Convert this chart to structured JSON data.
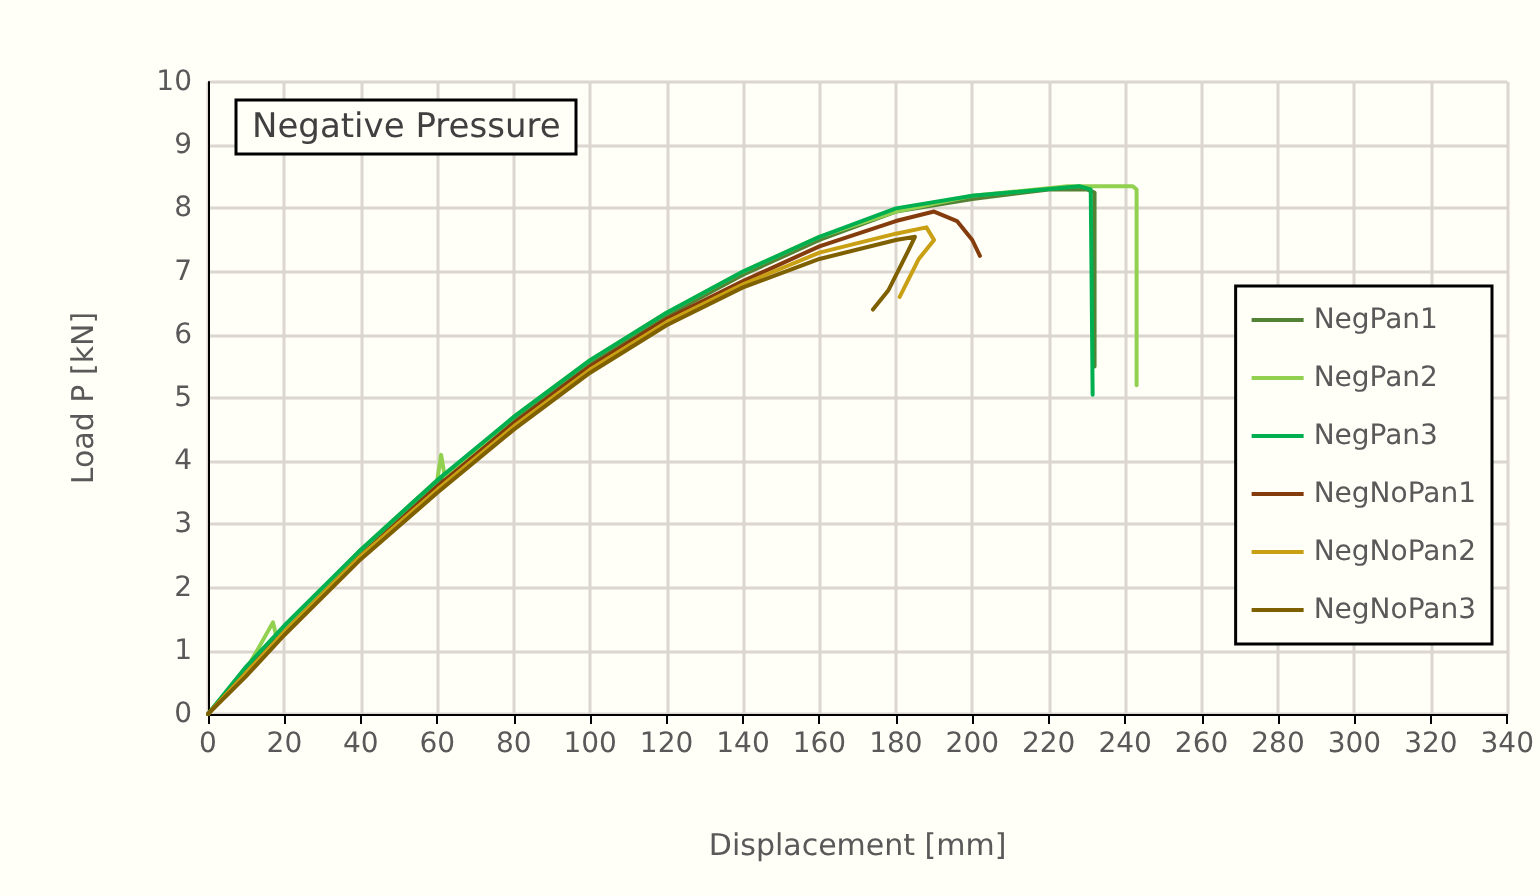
{
  "chart_data": {
    "type": "line",
    "title": "Negative Pressure",
    "xlabel": "Displacement [mm]",
    "ylabel": "Load P [kN]",
    "xlim": [
      0,
      340
    ],
    "xticks": [
      0,
      20,
      40,
      60,
      80,
      100,
      120,
      140,
      160,
      180,
      200,
      220,
      240,
      260,
      280,
      300,
      320,
      340
    ],
    "ylim": [
      0,
      10
    ],
    "yticks": [
      0,
      1,
      2,
      3,
      4,
      5,
      6,
      7,
      8,
      9,
      10
    ],
    "grid": true,
    "legend": "right",
    "marker": "none",
    "line_style": "solid",
    "series": [
      {
        "name": "NegPan1",
        "color": "#548235",
        "x": [
          0,
          10,
          20,
          40,
          60,
          80,
          100,
          120,
          140,
          160,
          180,
          200,
          220,
          230,
          232,
          232
        ],
        "values": [
          0,
          0.7,
          1.35,
          2.55,
          3.65,
          4.65,
          5.55,
          6.3,
          6.95,
          7.5,
          7.95,
          8.15,
          8.3,
          8.3,
          8.25,
          5.5
        ]
      },
      {
        "name": "NegPan2",
        "color": "#92d050",
        "x": [
          0,
          10,
          17,
          18,
          20,
          40,
          60,
          61,
          62,
          80,
          100,
          120,
          140,
          160,
          180,
          200,
          225,
          242,
          243,
          243
        ],
        "values": [
          0,
          0.7,
          1.45,
          1.2,
          1.35,
          2.6,
          3.7,
          4.1,
          3.75,
          4.7,
          5.6,
          6.35,
          7,
          7.55,
          7.95,
          8.2,
          8.35,
          8.35,
          8.3,
          5.2
        ]
      },
      {
        "name": "NegPan3",
        "color": "#00b050",
        "x": [
          0,
          10,
          20,
          40,
          60,
          80,
          100,
          120,
          140,
          160,
          180,
          200,
          228,
          231,
          231.5
        ],
        "values": [
          0,
          0.75,
          1.4,
          2.6,
          3.7,
          4.7,
          5.6,
          6.35,
          7,
          7.55,
          8,
          8.2,
          8.35,
          8.3,
          5.05
        ]
      },
      {
        "name": "NegNoPan1",
        "color": "#843c0c",
        "x": [
          0,
          10,
          20,
          40,
          60,
          80,
          100,
          120,
          140,
          160,
          180,
          190,
          196,
          200,
          202
        ],
        "values": [
          0,
          0.65,
          1.3,
          2.5,
          3.6,
          4.6,
          5.5,
          6.25,
          6.85,
          7.4,
          7.8,
          7.95,
          7.8,
          7.5,
          7.25
        ]
      },
      {
        "name": "NegNoPan2",
        "color": "#c9a014",
        "x": [
          0,
          10,
          20,
          40,
          60,
          80,
          100,
          120,
          140,
          160,
          180,
          188,
          190,
          186,
          181
        ],
        "values": [
          0,
          0.65,
          1.3,
          2.5,
          3.55,
          4.55,
          5.45,
          6.2,
          6.8,
          7.3,
          7.6,
          7.7,
          7.5,
          7.2,
          6.6
        ]
      },
      {
        "name": "NegNoPan3",
        "color": "#7f6000",
        "x": [
          0,
          10,
          20,
          40,
          60,
          80,
          100,
          120,
          140,
          160,
          180,
          185,
          183,
          178,
          174
        ],
        "values": [
          0,
          0.6,
          1.25,
          2.45,
          3.5,
          4.5,
          5.4,
          6.15,
          6.75,
          7.2,
          7.5,
          7.55,
          7.3,
          6.7,
          6.4
        ]
      }
    ]
  }
}
